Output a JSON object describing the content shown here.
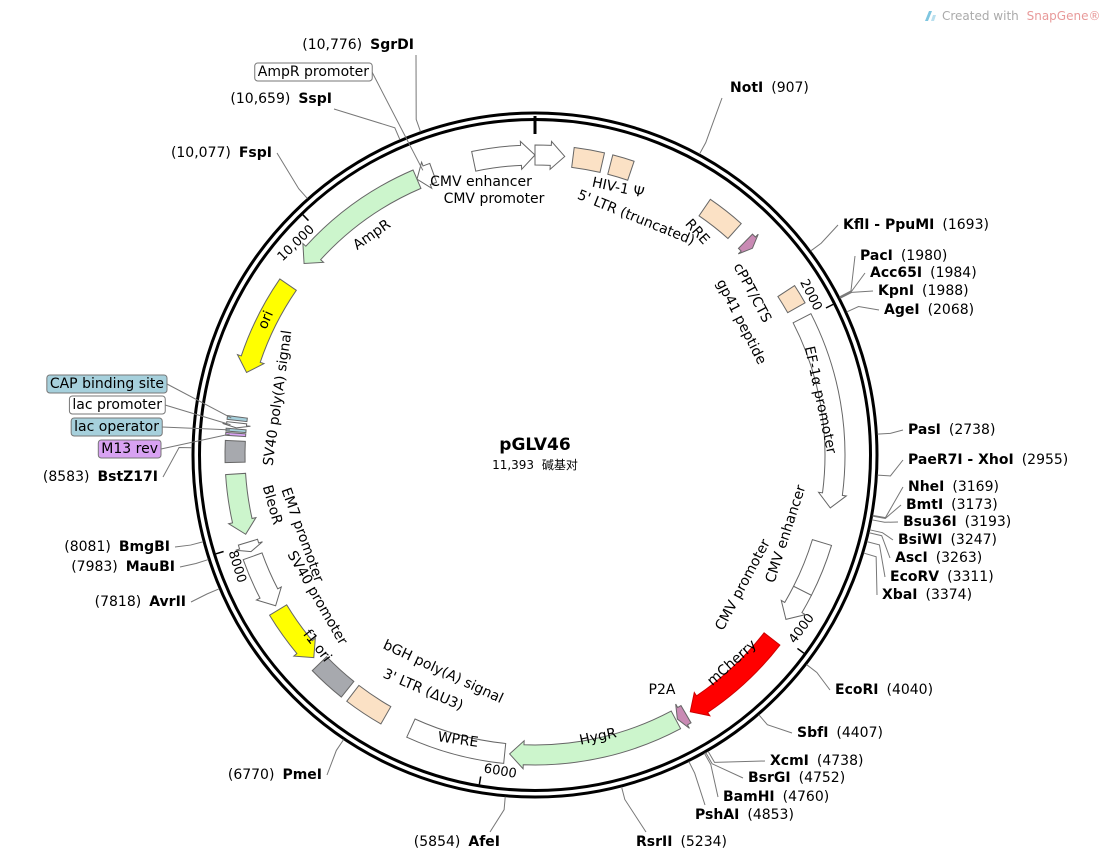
{
  "watermark": {
    "prefix": "Created with",
    "brand": "SnapGene®"
  },
  "plasmid": {
    "name": "pGLV46",
    "length": {
      "value": 11393,
      "label": "11,393"
    },
    "unit": "碱基对"
  },
  "ticks": [
    2000,
    4000,
    6000,
    8000,
    {
      "value": 10000,
      "label": "10,000"
    }
  ],
  "features": [
    {
      "name": "CMV enhancer",
      "start": 11020,
      "end": 11393,
      "direction": 1,
      "color": "#ffffff"
    },
    {
      "name": "CMV promoter",
      "start": 0,
      "end": 180,
      "direction": 1,
      "color": "#ffffff"
    },
    {
      "name": "5' LTR (truncated)",
      "start": 230,
      "end": 410,
      "direction": 0,
      "color": "#fbe1c5"
    },
    {
      "name": "HIV-1 Ψ",
      "start": 460,
      "end": 590,
      "direction": 0,
      "color": "#fbe1c5"
    },
    {
      "name": "RRE",
      "start": 1090,
      "end": 1320,
      "direction": 0,
      "color": "#fbe1c5"
    },
    {
      "name": "gp41 peptide",
      "start": 1410,
      "end": 1470,
      "direction": 1,
      "color": "#c98ab4"
    },
    {
      "name": "cPPT/CTS",
      "start": 1800,
      "end": 1918,
      "direction": 0,
      "color": "#fbe1c5"
    },
    {
      "name": "EF-1α promoter",
      "start": 1990,
      "end": 3170,
      "direction": 1,
      "color": "#ffffff"
    },
    {
      "name": "CMV enhancer",
      "start": 3385,
      "end": 3700,
      "direction": 0,
      "color": "#ffffff"
    },
    {
      "name": "CMV promoter",
      "start": 3700,
      "end": 3900,
      "direction": 1,
      "color": "#ffffff"
    },
    {
      "name": "mCherry",
      "start": 4045,
      "end": 4710,
      "direction": 1,
      "color": "#ff0000"
    },
    {
      "name": "P2A",
      "start": 4740,
      "end": 4800,
      "direction": 1,
      "color": "#c98ab4"
    },
    {
      "name": "HygR",
      "start": 4810,
      "end": 5850,
      "direction": 1,
      "color": "#ccf5cc"
    },
    {
      "name": "WPRE",
      "start": 5880,
      "end": 6470,
      "direction": 0,
      "color": "#ffffff"
    },
    {
      "name": "3' LTR (ΔU3)",
      "start": 6640,
      "end": 6880,
      "direction": 0,
      "color": "#fbe1c5"
    },
    {
      "name": "bGH poly(A) signal",
      "start": 6920,
      "end": 7150,
      "direction": 0,
      "color": "#a7a9ae"
    },
    {
      "name": "f1 ori",
      "start": 7200,
      "end": 7560,
      "direction": -1,
      "color": "#ffff00"
    },
    {
      "name": "SV40 promoter",
      "start": 7590,
      "end": 7920,
      "direction": -1,
      "color": "#ffffff"
    },
    {
      "name": "EM7 promoter",
      "start": 7950,
      "end": 8010,
      "direction": -1,
      "color": "#ffffff"
    },
    {
      "name": "BleoR",
      "start": 8060,
      "end": 8430,
      "direction": -1,
      "color": "#ccf5cc"
    },
    {
      "name": "SV40 poly(A) signal",
      "start": 8500,
      "end": 8630,
      "direction": 0,
      "color": "#a7a9ae"
    },
    {
      "name": "M13 rev",
      "start": 8660,
      "end": 8677,
      "direction": 0,
      "color": "#d8a2f2"
    },
    {
      "name": "lac operator",
      "start": 8685,
      "end": 8702,
      "direction": 0,
      "color": "#a6d0dc"
    },
    {
      "name": "lac promoter",
      "start": 8709,
      "end": 8740,
      "direction": -1,
      "color": "#ffffff"
    },
    {
      "name": "CAP binding site",
      "start": 8754,
      "end": 8776,
      "direction": 0,
      "color": "#a6d0dc"
    },
    {
      "name": "ori",
      "start": 9050,
      "end": 9640,
      "direction": -1,
      "color": "#ffff00"
    },
    {
      "name": "AmpR",
      "start": 9800,
      "end": 10660,
      "direction": -1,
      "color": "#ccf5cc"
    },
    {
      "name": "AmpR promoter",
      "start": 10660,
      "end": 10765,
      "direction": -1,
      "color": "#ffffff"
    }
  ],
  "sites": [
    {
      "name": "NotI",
      "position": {
        "value": 907,
        "label": "(907)"
      }
    },
    {
      "name": "KflI - PpuMI",
      "position": {
        "value": 1693,
        "label": "(1693)"
      }
    },
    {
      "name": "PacI",
      "position": {
        "value": 1980,
        "label": "(1980)"
      }
    },
    {
      "name": "Acc65I",
      "position": {
        "value": 1984,
        "label": "(1984)"
      }
    },
    {
      "name": "KpnI",
      "position": {
        "value": 1988,
        "label": "(1988)"
      }
    },
    {
      "name": "AgeI",
      "position": {
        "value": 2068,
        "label": "(2068)"
      }
    },
    {
      "name": "PasI",
      "position": {
        "value": 2738,
        "label": "(2738)"
      }
    },
    {
      "name": "PaeR7I - XhoI",
      "position": {
        "value": 2955,
        "label": "(2955)"
      }
    },
    {
      "name": "NheI",
      "position": {
        "value": 3169,
        "label": "(3169)"
      }
    },
    {
      "name": "BmtI",
      "position": {
        "value": 3173,
        "label": "(3173)"
      }
    },
    {
      "name": "Bsu36I",
      "position": {
        "value": 3193,
        "label": "(3193)"
      }
    },
    {
      "name": "BsiWI",
      "position": {
        "value": 3247,
        "label": "(3247)"
      }
    },
    {
      "name": "AscI",
      "position": {
        "value": 3263,
        "label": "(3263)"
      }
    },
    {
      "name": "EcoRV",
      "position": {
        "value": 3311,
        "label": "(3311)"
      }
    },
    {
      "name": "XbaI",
      "position": {
        "value": 3374,
        "label": "(3374)"
      }
    },
    {
      "name": "EcoRI",
      "position": {
        "value": 4040,
        "label": "(4040)"
      }
    },
    {
      "name": "SbfI",
      "position": {
        "value": 4407,
        "label": "(4407)"
      }
    },
    {
      "name": "XcmI",
      "position": {
        "value": 4738,
        "label": "(4738)"
      }
    },
    {
      "name": "BsrGI",
      "position": {
        "value": 4752,
        "label": "(4752)"
      }
    },
    {
      "name": "BamHI",
      "position": {
        "value": 4760,
        "label": "(4760)"
      }
    },
    {
      "name": "PshAI",
      "position": {
        "value": 4853,
        "label": "(4853)"
      }
    },
    {
      "name": "RsrII",
      "position": {
        "value": 5234,
        "label": "(5234)"
      }
    },
    {
      "name": "AfeI",
      "position": {
        "value": 5854,
        "label": "(5854)"
      }
    },
    {
      "name": "PmeI",
      "position": {
        "value": 6770,
        "label": "(6770)"
      }
    },
    {
      "name": "AvrII",
      "position": {
        "value": 7818,
        "label": "(7818)"
      }
    },
    {
      "name": "MauBI",
      "position": {
        "value": 7983,
        "label": "(7983)"
      }
    },
    {
      "name": "BmgBI",
      "position": {
        "value": 8081,
        "label": "(8081)"
      }
    },
    {
      "name": "BstZ17I",
      "position": {
        "value": 8583,
        "label": "(8583)"
      }
    },
    {
      "name": "FspI",
      "position": {
        "value": 10077,
        "label": "(10,077)"
      }
    },
    {
      "name": "SspI",
      "position": {
        "value": 10659,
        "label": "(10,659)"
      }
    },
    {
      "name": "SgrDI",
      "position": {
        "value": 10776,
        "label": "(10,776)"
      }
    }
  ]
}
